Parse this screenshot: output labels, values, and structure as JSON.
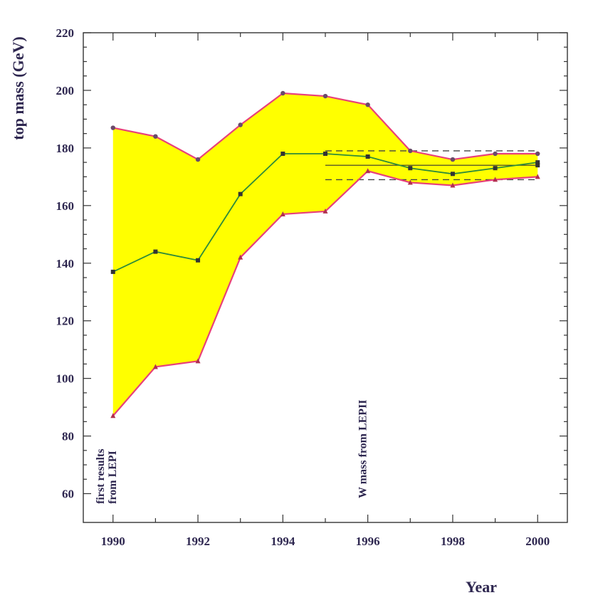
{
  "chart_data": {
    "type": "area",
    "xlabel": "Year",
    "ylabel": "top mass (GeV)",
    "xlim": [
      1989.3,
      2000.7
    ],
    "ylim": [
      50,
      220
    ],
    "x_ticks": [
      1990,
      1992,
      1994,
      1996,
      1998,
      2000
    ],
    "y_ticks": [
      60,
      80,
      100,
      120,
      140,
      160,
      180,
      200,
      220
    ],
    "grid": false,
    "series": [
      {
        "x": [
          1990,
          1991,
          1992,
          1993,
          1994,
          1995,
          1996,
          1997,
          1998,
          1999,
          2000
        ],
        "values": [
          187,
          184,
          176,
          188,
          199,
          198,
          195,
          179,
          176,
          178,
          178
        ]
      },
      {
        "x": [
          1990,
          1991,
          1992,
          1993,
          1994,
          1995,
          1996,
          1997,
          1998,
          1999,
          2000
        ],
        "values": [
          137,
          144,
          141,
          164,
          178,
          178,
          177,
          173,
          171,
          173,
          175
        ]
      },
      {
        "x": [
          1990,
          1991,
          1992,
          1993,
          1994,
          1995,
          1996,
          1997,
          1998,
          1999,
          2000
        ],
        "values": [
          87,
          104,
          106,
          142,
          157,
          158,
          172,
          168,
          167,
          169,
          170
        ]
      }
    ],
    "reference_band": {
      "x": [
        1995,
        2000
      ],
      "central": 174,
      "upper": 179,
      "lower": 169
    },
    "annotations": [
      {
        "text": [
          "first results",
          "from LEPI"
        ],
        "x": 1990
      },
      {
        "text": [
          "W mass from LEPII"
        ],
        "x": 1996
      }
    ],
    "colors": {
      "band_fill": "#ffff00",
      "bound_line": "#e8407a",
      "central_line": "#2e8b3a",
      "text": "#2e2750"
    }
  }
}
